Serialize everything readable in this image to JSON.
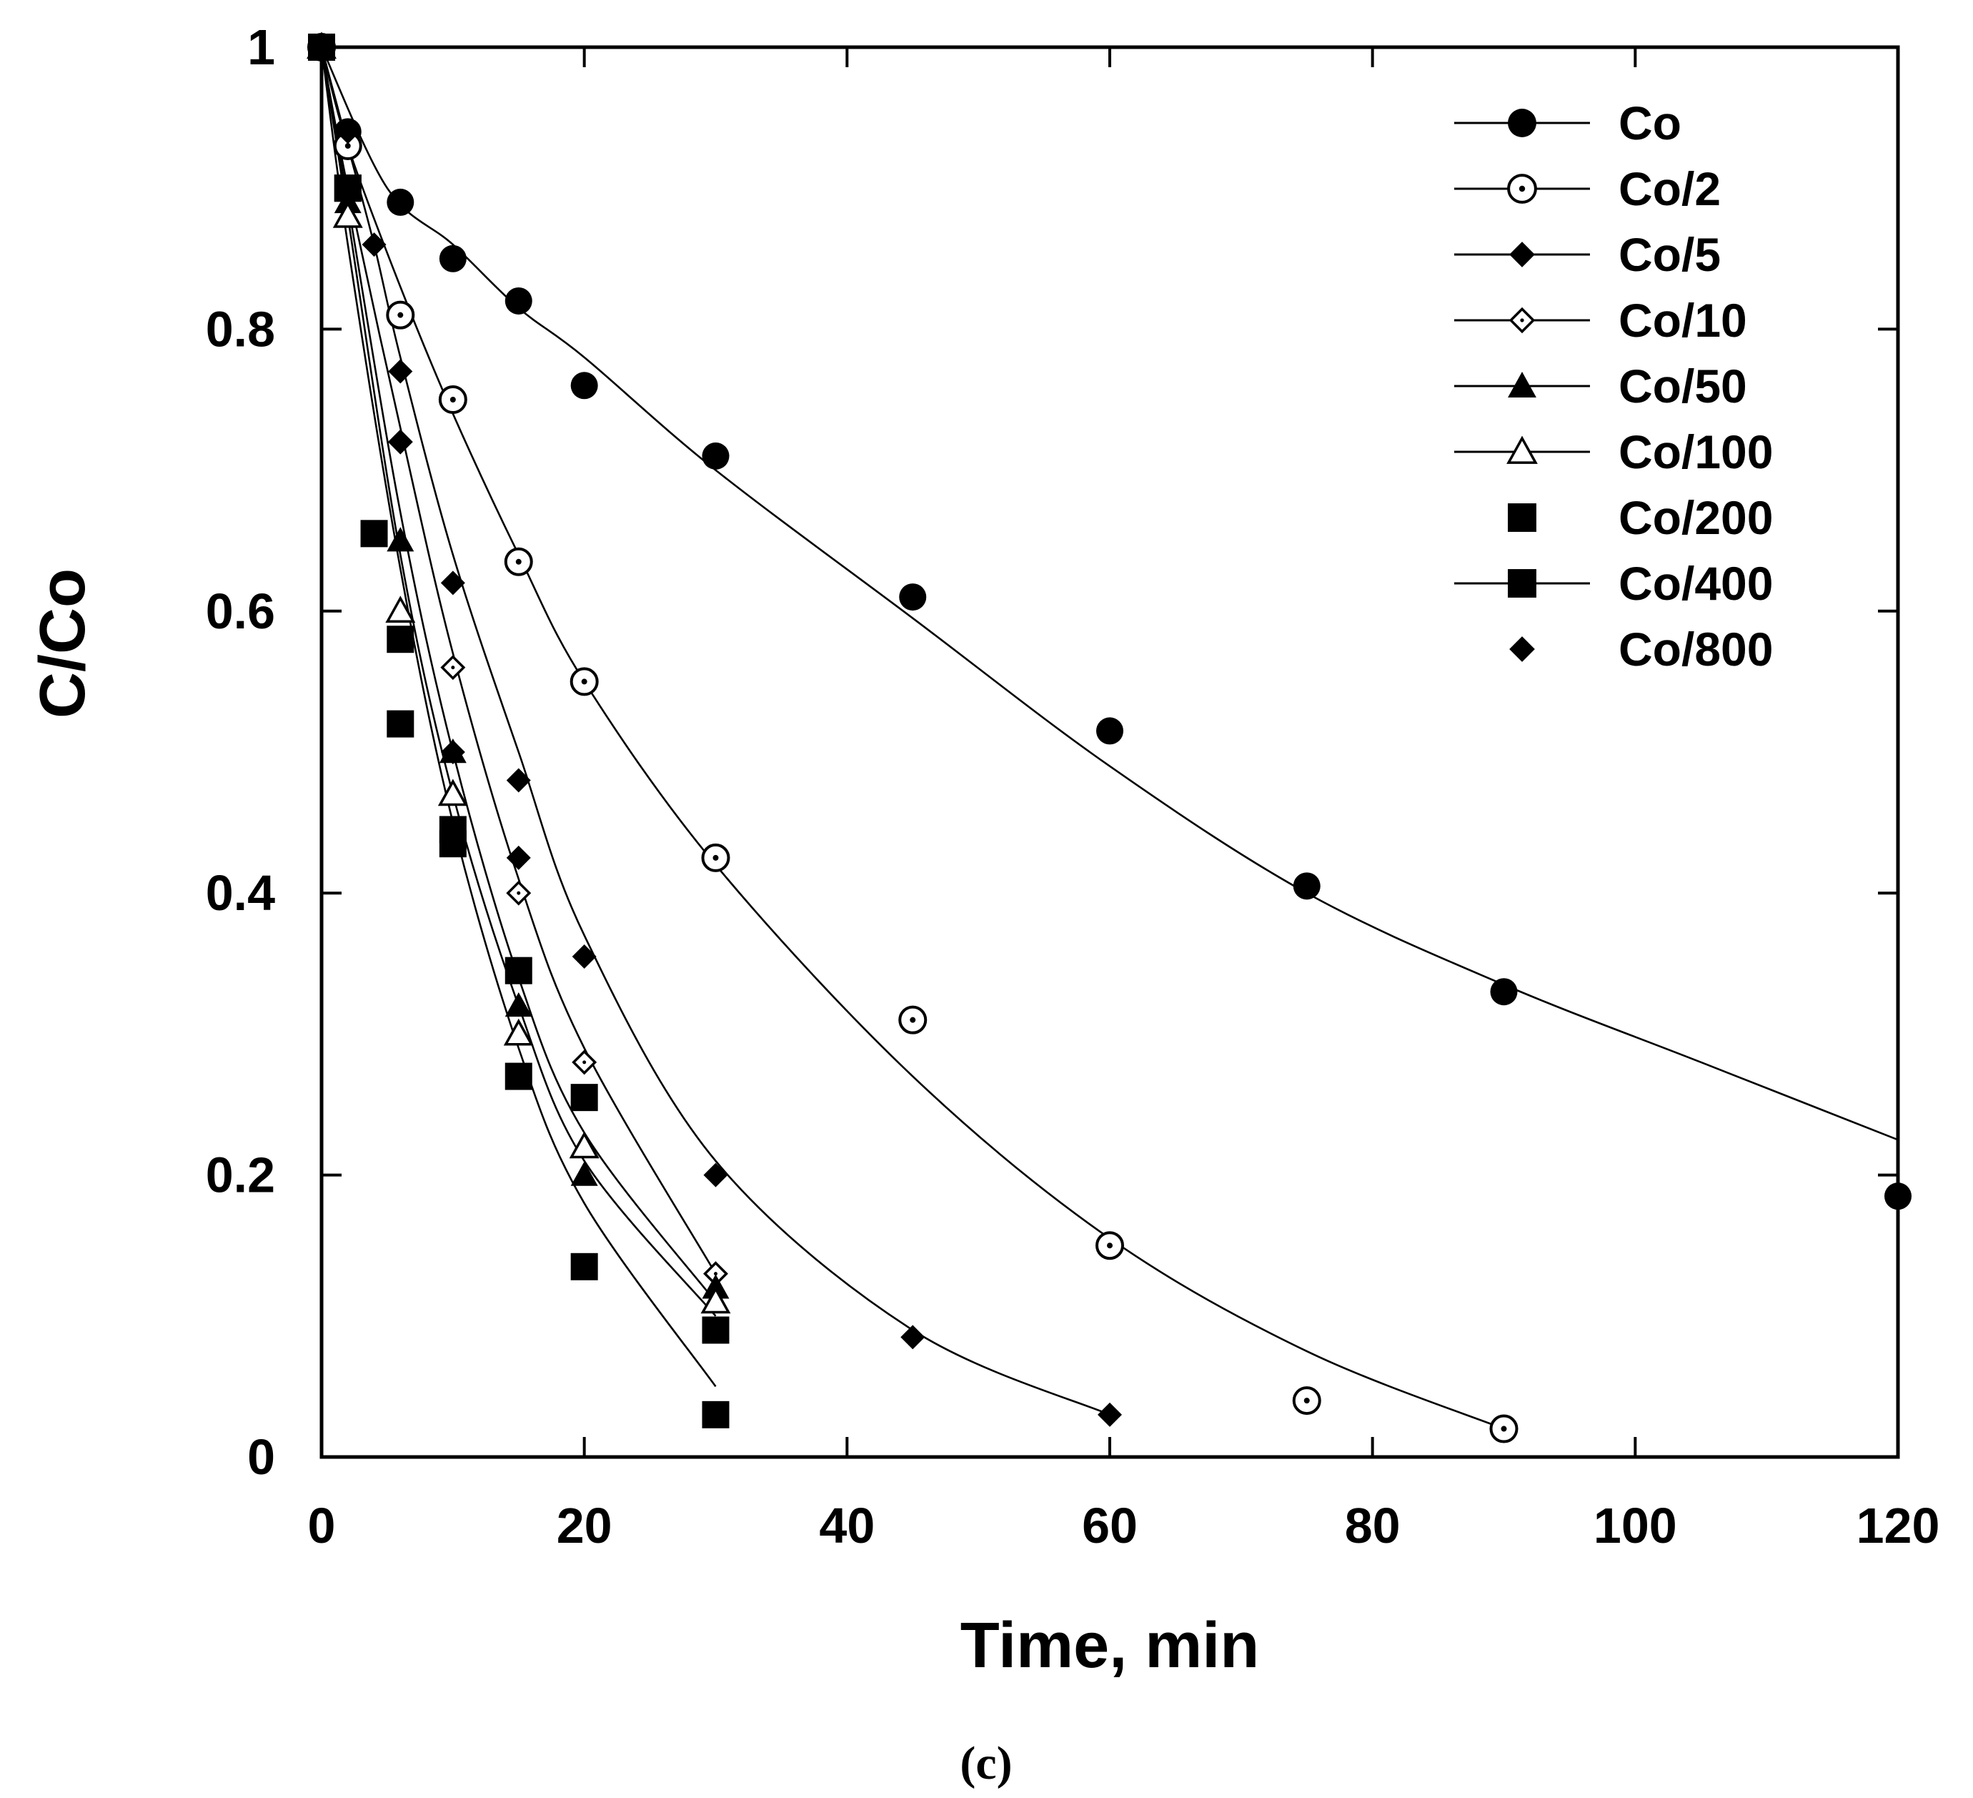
{
  "chart_data": {
    "type": "scatter",
    "title": "",
    "xlabel": "Time, min",
    "ylabel": "C/Co",
    "caption": "(c)",
    "xlim": [
      0,
      120
    ],
    "ylim": [
      0,
      1
    ],
    "xticks": [
      0,
      20,
      40,
      60,
      80,
      100,
      120
    ],
    "yticks": [
      0,
      0.2,
      0.4,
      0.6,
      0.8,
      1
    ],
    "xtick_labels": [
      "0",
      "20",
      "40",
      "60",
      "80",
      "100",
      "120"
    ],
    "ytick_labels": [
      "0",
      "0.2",
      "0.4",
      "0.6",
      "0.8",
      "1"
    ],
    "grid": false,
    "legend_position": "top-right",
    "series": [
      {
        "name": "Co",
        "marker": "filled-circle",
        "line": true,
        "x": [
          0,
          2,
          6,
          10,
          15,
          20,
          30,
          45,
          60,
          75,
          90,
          120
        ],
        "y": [
          1.0,
          0.94,
          0.89,
          0.85,
          0.82,
          0.76,
          0.71,
          0.61,
          0.515,
          0.405,
          0.33,
          0.185
        ],
        "fit_x": [
          0,
          5,
          10,
          15,
          20,
          30,
          45,
          60,
          75,
          90,
          105,
          120
        ],
        "fit_y": [
          1.0,
          0.9,
          0.86,
          0.815,
          0.78,
          0.7,
          0.595,
          0.49,
          0.4,
          0.335,
          0.28,
          0.225
        ]
      },
      {
        "name": "Co/2",
        "marker": "dot-circle",
        "line": true,
        "x": [
          0,
          2,
          6,
          10,
          15,
          20,
          30,
          45,
          60,
          75,
          90
        ],
        "y": [
          1.0,
          0.93,
          0.81,
          0.75,
          0.635,
          0.55,
          0.425,
          0.31,
          0.15,
          0.04,
          0.02
        ],
        "fit_x": [
          0,
          2,
          6,
          10,
          15,
          20,
          30,
          45,
          60,
          75,
          90
        ],
        "fit_y": [
          1.0,
          0.93,
          0.83,
          0.74,
          0.64,
          0.55,
          0.42,
          0.27,
          0.155,
          0.075,
          0.02
        ]
      },
      {
        "name": "Co/5",
        "marker": "filled-diamond",
        "line": true,
        "x": [
          0,
          2,
          4,
          6,
          10,
          15,
          20,
          30,
          45,
          60
        ],
        "y": [
          1.0,
          0.94,
          0.86,
          0.77,
          0.62,
          0.48,
          0.355,
          0.2,
          0.085,
          0.03
        ],
        "fit_x": [
          0,
          2,
          4,
          6,
          10,
          15,
          20,
          30,
          45,
          60
        ],
        "fit_y": [
          1.0,
          0.93,
          0.86,
          0.78,
          0.64,
          0.5,
          0.37,
          0.21,
          0.09,
          0.03
        ]
      },
      {
        "name": "Co/10",
        "marker": "open-diamond",
        "line": true,
        "x": [
          0,
          2,
          6,
          10,
          15,
          20,
          30
        ],
        "y": [
          1.0,
          0.9,
          0.72,
          0.56,
          0.4,
          0.28,
          0.13
        ],
        "fit_x": [
          0,
          2,
          6,
          10,
          15,
          20,
          30
        ],
        "fit_y": [
          1.0,
          0.9,
          0.73,
          0.57,
          0.41,
          0.29,
          0.13
        ]
      },
      {
        "name": "Co/50",
        "marker": "filled-triangle",
        "line": true,
        "x": [
          0,
          2,
          6,
          10,
          15,
          20,
          30
        ],
        "y": [
          1.0,
          0.89,
          0.65,
          0.5,
          0.32,
          0.2,
          0.12
        ],
        "fit_x": [
          0,
          2,
          6,
          10,
          15,
          20,
          30
        ],
        "fit_y": [
          1.0,
          0.89,
          0.67,
          0.5,
          0.34,
          0.23,
          0.11
        ]
      },
      {
        "name": "Co/100",
        "marker": "open-triangle",
        "line": true,
        "x": [
          0,
          2,
          6,
          10,
          15,
          20,
          30
        ],
        "y": [
          1.0,
          0.88,
          0.6,
          0.47,
          0.3,
          0.22,
          0.11
        ],
        "fit_x": [
          0,
          2,
          6,
          10,
          15,
          20,
          30
        ],
        "fit_y": [
          1.0,
          0.88,
          0.64,
          0.47,
          0.32,
          0.21,
          0.1
        ]
      },
      {
        "name": "Co/200",
        "marker": "filled-square",
        "line": false,
        "x": [
          0,
          2,
          4,
          6,
          10,
          15,
          20,
          30
        ],
        "y": [
          1.0,
          0.9,
          0.655,
          0.58,
          0.435,
          0.345,
          0.255,
          0.09
        ],
        "fit_x": [],
        "fit_y": []
      },
      {
        "name": "Co/400",
        "marker": "filled-square",
        "line": true,
        "x": [
          0,
          2,
          6,
          10,
          15,
          20,
          30
        ],
        "y": [
          1.0,
          0.9,
          0.52,
          0.445,
          0.27,
          0.135,
          0.03
        ],
        "fit_x": [
          0,
          2,
          6,
          10,
          15,
          20,
          30
        ],
        "fit_y": [
          1.0,
          0.86,
          0.63,
          0.45,
          0.29,
          0.18,
          0.05
        ]
      },
      {
        "name": "Co/800",
        "marker": "filled-diamond",
        "line": false,
        "x": [
          0,
          2,
          6,
          10,
          15
        ],
        "y": [
          1.0,
          0.9,
          0.72,
          0.5,
          0.425
        ],
        "fit_x": [],
        "fit_y": []
      }
    ]
  }
}
